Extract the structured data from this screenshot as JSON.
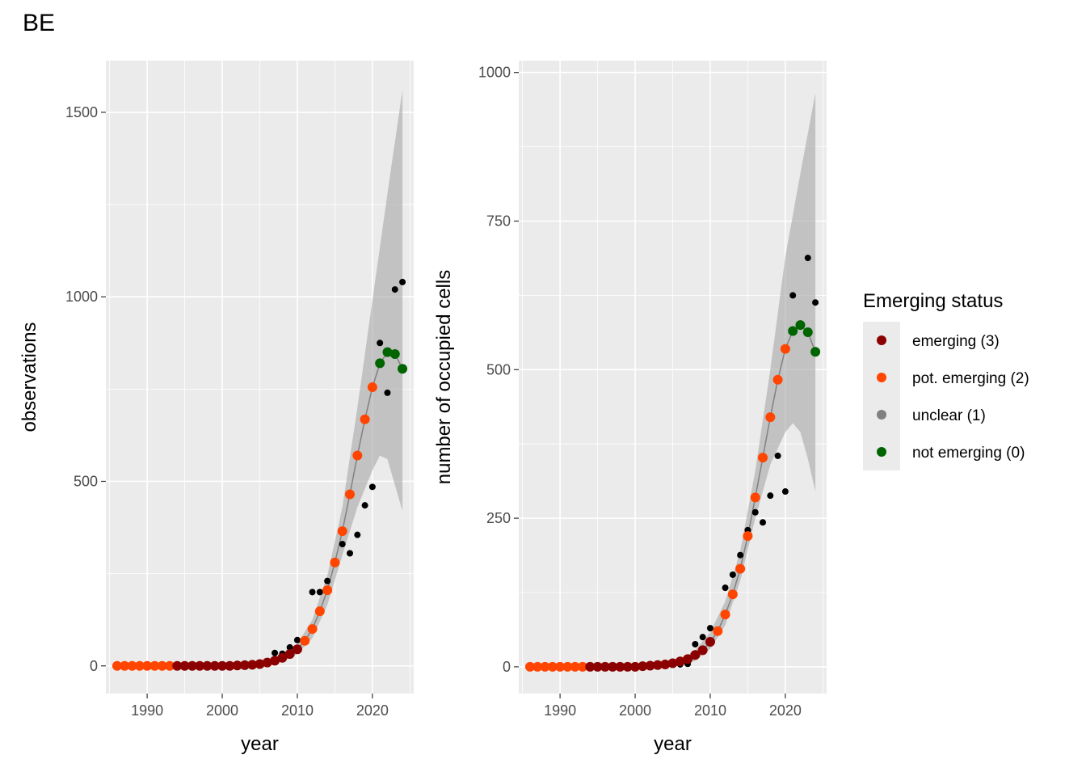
{
  "page": {
    "title": "BE"
  },
  "legend": {
    "title": "Emerging status",
    "placement": "right",
    "items": [
      {
        "label": "emerging (3)",
        "color": "#8B0000"
      },
      {
        "label": "pot. emerging (2)",
        "color": "#FF4500"
      },
      {
        "label": "unclear (1)",
        "color": "#808080"
      },
      {
        "label": "not emerging (0)",
        "color": "#006400"
      }
    ]
  },
  "chart_data": [
    {
      "type": "scatter",
      "panel": "left",
      "title": "",
      "xlabel": "year",
      "ylabel": "observations",
      "xlim": [
        1984.5,
        2025.5
      ],
      "ylim": [
        -75,
        1640
      ],
      "x_ticks": [
        1990,
        2000,
        2010,
        2020
      ],
      "y_ticks": [
        0,
        500,
        1000,
        1500
      ],
      "grid": true,
      "raw_points": [
        [
          2007,
          35
        ],
        [
          2008,
          33
        ],
        [
          2009,
          50
        ],
        [
          2010,
          70
        ],
        [
          2012,
          200
        ],
        [
          2013,
          200
        ],
        [
          2014,
          230
        ],
        [
          2016,
          330
        ],
        [
          2017,
          305
        ],
        [
          2018,
          355
        ],
        [
          2019,
          435
        ],
        [
          2020,
          485
        ],
        [
          2021,
          875
        ],
        [
          2022,
          740
        ],
        [
          2023,
          1020
        ],
        [
          2024,
          1040
        ]
      ],
      "fitted": [
        {
          "year": 1986,
          "value": 0,
          "status": 2
        },
        {
          "year": 1987,
          "value": 0,
          "status": 2
        },
        {
          "year": 1988,
          "value": 0,
          "status": 2
        },
        {
          "year": 1989,
          "value": 0,
          "status": 2
        },
        {
          "year": 1990,
          "value": 0,
          "status": 2
        },
        {
          "year": 1991,
          "value": 0,
          "status": 2
        },
        {
          "year": 1992,
          "value": 0,
          "status": 2
        },
        {
          "year": 1993,
          "value": 0,
          "status": 2
        },
        {
          "year": 1994,
          "value": 0,
          "status": 3
        },
        {
          "year": 1995,
          "value": 0,
          "status": 3
        },
        {
          "year": 1996,
          "value": 0,
          "status": 3
        },
        {
          "year": 1997,
          "value": 0,
          "status": 3
        },
        {
          "year": 1998,
          "value": 0,
          "status": 3
        },
        {
          "year": 1999,
          "value": 0,
          "status": 3
        },
        {
          "year": 2000,
          "value": 0,
          "status": 3
        },
        {
          "year": 2001,
          "value": 0,
          "status": 3
        },
        {
          "year": 2002,
          "value": 1,
          "status": 3
        },
        {
          "year": 2003,
          "value": 2,
          "status": 3
        },
        {
          "year": 2004,
          "value": 3,
          "status": 3
        },
        {
          "year": 2005,
          "value": 5,
          "status": 3
        },
        {
          "year": 2006,
          "value": 9,
          "status": 3
        },
        {
          "year": 2007,
          "value": 14,
          "status": 3
        },
        {
          "year": 2008,
          "value": 22,
          "status": 3
        },
        {
          "year": 2009,
          "value": 32,
          "status": 3
        },
        {
          "year": 2010,
          "value": 45,
          "status": 3
        },
        {
          "year": 2011,
          "value": 68,
          "status": 2
        },
        {
          "year": 2012,
          "value": 100,
          "status": 2
        },
        {
          "year": 2013,
          "value": 148,
          "status": 2
        },
        {
          "year": 2014,
          "value": 205,
          "status": 2
        },
        {
          "year": 2015,
          "value": 280,
          "status": 2
        },
        {
          "year": 2016,
          "value": 365,
          "status": 2
        },
        {
          "year": 2017,
          "value": 465,
          "status": 2
        },
        {
          "year": 2018,
          "value": 570,
          "status": 2
        },
        {
          "year": 2019,
          "value": 668,
          "status": 2
        },
        {
          "year": 2020,
          "value": 755,
          "status": 2
        },
        {
          "year": 2021,
          "value": 820,
          "status": 0
        },
        {
          "year": 2022,
          "value": 850,
          "status": 0
        },
        {
          "year": 2023,
          "value": 845,
          "status": 0
        },
        {
          "year": 2024,
          "value": 805,
          "status": 0
        }
      ],
      "ci_lower": [
        [
          2006,
          3
        ],
        [
          2008,
          12
        ],
        [
          2010,
          32
        ],
        [
          2012,
          75
        ],
        [
          2014,
          165
        ],
        [
          2016,
          300
        ],
        [
          2018,
          430
        ],
        [
          2020,
          530
        ],
        [
          2021,
          570
        ],
        [
          2022,
          560
        ],
        [
          2023,
          490
        ],
        [
          2024,
          420
        ]
      ],
      "ci_upper": [
        [
          2006,
          15
        ],
        [
          2008,
          32
        ],
        [
          2010,
          60
        ],
        [
          2012,
          125
        ],
        [
          2014,
          245
        ],
        [
          2016,
          430
        ],
        [
          2018,
          700
        ],
        [
          2020,
          990
        ],
        [
          2022,
          1280
        ],
        [
          2024,
          1560
        ]
      ]
    },
    {
      "type": "scatter",
      "panel": "right",
      "title": "",
      "xlabel": "year",
      "ylabel": "number of occupied cells",
      "xlim": [
        1984.5,
        2025.5
      ],
      "ylim": [
        -45,
        1020
      ],
      "x_ticks": [
        1990,
        2000,
        2010,
        2020
      ],
      "y_ticks": [
        0,
        250,
        500,
        750,
        1000
      ],
      "grid": true,
      "raw_points": [
        [
          2006,
          4
        ],
        [
          2007,
          5
        ],
        [
          2008,
          38
        ],
        [
          2009,
          50
        ],
        [
          2010,
          65
        ],
        [
          2012,
          133
        ],
        [
          2013,
          155
        ],
        [
          2014,
          188
        ],
        [
          2015,
          230
        ],
        [
          2016,
          260
        ],
        [
          2017,
          243
        ],
        [
          2018,
          288
        ],
        [
          2019,
          355
        ],
        [
          2020,
          295
        ],
        [
          2021,
          625
        ],
        [
          2023,
          688
        ],
        [
          2024,
          613
        ]
      ],
      "fitted": [
        {
          "year": 1986,
          "value": 0,
          "status": 2
        },
        {
          "year": 1987,
          "value": 0,
          "status": 2
        },
        {
          "year": 1988,
          "value": 0,
          "status": 2
        },
        {
          "year": 1989,
          "value": 0,
          "status": 2
        },
        {
          "year": 1990,
          "value": 0,
          "status": 2
        },
        {
          "year": 1991,
          "value": 0,
          "status": 2
        },
        {
          "year": 1992,
          "value": 0,
          "status": 2
        },
        {
          "year": 1993,
          "value": 0,
          "status": 2
        },
        {
          "year": 1994,
          "value": 0,
          "status": 3
        },
        {
          "year": 1995,
          "value": 0,
          "status": 3
        },
        {
          "year": 1996,
          "value": 0,
          "status": 3
        },
        {
          "year": 1997,
          "value": 0,
          "status": 3
        },
        {
          "year": 1998,
          "value": 0,
          "status": 3
        },
        {
          "year": 1999,
          "value": 0,
          "status": 3
        },
        {
          "year": 2000,
          "value": 0,
          "status": 3
        },
        {
          "year": 2001,
          "value": 1,
          "status": 3
        },
        {
          "year": 2002,
          "value": 2,
          "status": 3
        },
        {
          "year": 2003,
          "value": 3,
          "status": 3
        },
        {
          "year": 2004,
          "value": 4,
          "status": 3
        },
        {
          "year": 2005,
          "value": 6,
          "status": 3
        },
        {
          "year": 2006,
          "value": 9,
          "status": 3
        },
        {
          "year": 2007,
          "value": 13,
          "status": 3
        },
        {
          "year": 2008,
          "value": 20,
          "status": 3
        },
        {
          "year": 2009,
          "value": 28,
          "status": 3
        },
        {
          "year": 2010,
          "value": 42,
          "status": 3
        },
        {
          "year": 2011,
          "value": 60,
          "status": 2
        },
        {
          "year": 2012,
          "value": 88,
          "status": 2
        },
        {
          "year": 2013,
          "value": 122,
          "status": 2
        },
        {
          "year": 2014,
          "value": 165,
          "status": 2
        },
        {
          "year": 2015,
          "value": 220,
          "status": 2
        },
        {
          "year": 2016,
          "value": 285,
          "status": 2
        },
        {
          "year": 2017,
          "value": 352,
          "status": 2
        },
        {
          "year": 2018,
          "value": 420,
          "status": 2
        },
        {
          "year": 2019,
          "value": 483,
          "status": 2
        },
        {
          "year": 2020,
          "value": 535,
          "status": 2
        },
        {
          "year": 2021,
          "value": 565,
          "status": 0
        },
        {
          "year": 2022,
          "value": 575,
          "status": 0
        },
        {
          "year": 2023,
          "value": 563,
          "status": 0
        },
        {
          "year": 2024,
          "value": 530,
          "status": 0
        }
      ],
      "ci_lower": [
        [
          2006,
          2
        ],
        [
          2008,
          10
        ],
        [
          2010,
          30
        ],
        [
          2012,
          70
        ],
        [
          2014,
          145
        ],
        [
          2016,
          250
        ],
        [
          2018,
          340
        ],
        [
          2020,
          395
        ],
        [
          2021,
          410
        ],
        [
          2022,
          395
        ],
        [
          2023,
          350
        ],
        [
          2024,
          295
        ]
      ],
      "ci_upper": [
        [
          2006,
          12
        ],
        [
          2008,
          28
        ],
        [
          2010,
          58
        ],
        [
          2012,
          110
        ],
        [
          2014,
          195
        ],
        [
          2016,
          330
        ],
        [
          2018,
          500
        ],
        [
          2020,
          690
        ],
        [
          2022,
          830
        ],
        [
          2024,
          965
        ]
      ]
    }
  ]
}
